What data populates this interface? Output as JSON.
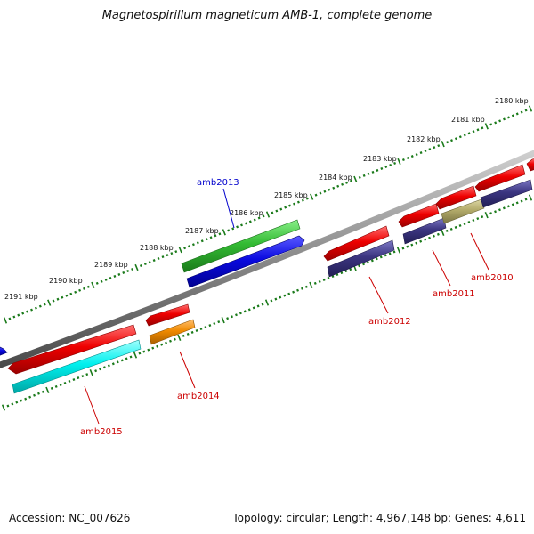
{
  "title": "Magnetospirillum magneticum AMB-1, complete genome",
  "footer": {
    "accession": "Accession: NC_007626",
    "summary": "Topology: circular; Length: 4,967,148 bp; Genes: 4,611"
  },
  "scale_ticks": [
    "2180 kbp",
    "2181 kbp",
    "2182 kbp",
    "2183 kbp",
    "2184 kbp",
    "2185 kbp",
    "2186 kbp",
    "2187 kbp",
    "2188 kbp",
    "2189 kbp",
    "2190 kbp",
    "2191 kbp"
  ],
  "genes": [
    {
      "name": "amb2010",
      "label_color": "#cc0000",
      "strand": "reverse",
      "feature_color": "#3b3580"
    },
    {
      "name": "amb2011",
      "label_color": "#cc0000",
      "strand": "reverse",
      "feature_color": "#3b3580"
    },
    {
      "name": "amb2012",
      "label_color": "#cc0000",
      "strand": "reverse",
      "feature_color": "#3b3580"
    },
    {
      "name": "amb2013",
      "label_color": "#0000cc",
      "strand": "forward",
      "feature_color": "#0a0ae0"
    },
    {
      "name": "amb2014",
      "label_color": "#cc0000",
      "strand": "reverse",
      "feature_color": "#f08a00"
    },
    {
      "name": "amb2015",
      "label_color": "#cc0000",
      "strand": "reverse",
      "feature_color": "#00f0ee"
    }
  ],
  "colors": {
    "gene_red": "#ee0000",
    "forward_green": "#33bb33",
    "tick_green": "#1a7a1a",
    "backbone": "#8a8a8a",
    "olive": "#b2aa6a"
  }
}
